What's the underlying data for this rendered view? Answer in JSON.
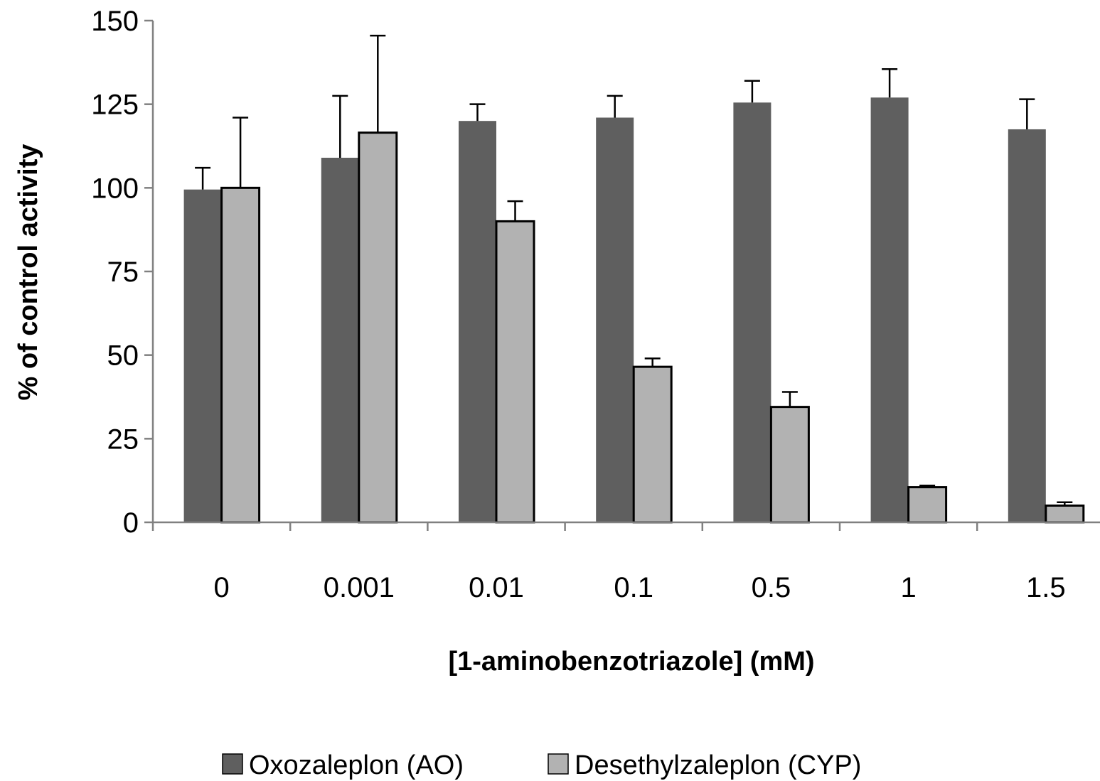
{
  "chart_data": {
    "type": "bar",
    "title": "",
    "xlabel": "[1-aminobenzotriazole] (mM)",
    "ylabel": "% of control activity",
    "categories": [
      "0",
      "0.001",
      "0.01",
      "0.1",
      "0.5",
      "1",
      "1.5"
    ],
    "ylim": [
      0,
      150
    ],
    "yticks": [
      0,
      25,
      50,
      75,
      100,
      125,
      150
    ],
    "grid": false,
    "legend_position": "bottom",
    "series": [
      {
        "name": "Oxozaleplon (AO)",
        "color": "#5f5f5f",
        "values": [
          99.5,
          109,
          120,
          121,
          125.5,
          127,
          117.5
        ],
        "errors": [
          6.5,
          18.5,
          5,
          6.5,
          6.5,
          8.5,
          9
        ]
      },
      {
        "name": "Desethylzaleplon (CYP)",
        "color": "#b2b2b2",
        "values": [
          100,
          116.5,
          90,
          46.5,
          34.5,
          10.5,
          5
        ],
        "errors": [
          21,
          29,
          6,
          2.5,
          4.5,
          0.5,
          1
        ]
      }
    ]
  }
}
